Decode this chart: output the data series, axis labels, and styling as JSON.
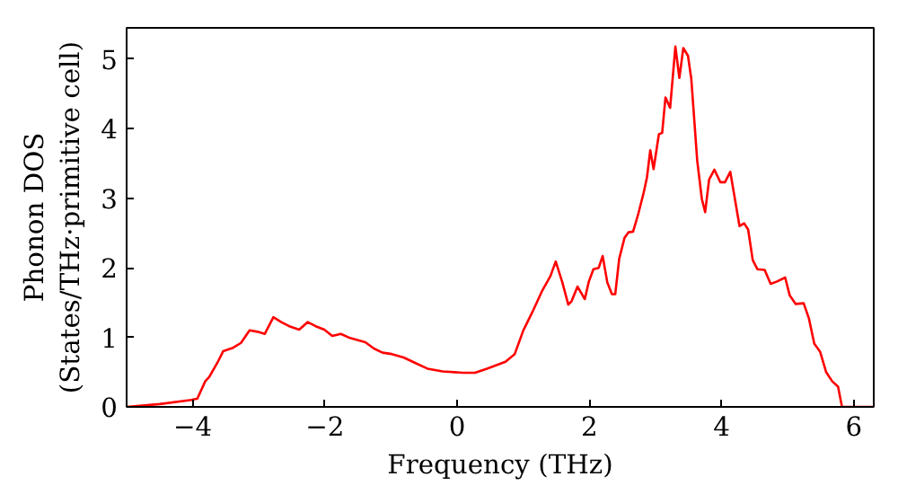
{
  "chart_data": {
    "type": "line",
    "xlabel": "Frequency (THz)",
    "ylabel": "Phonon DOS\n(States/THz·primitive cell)",
    "xlim": [
      -5,
      6.3
    ],
    "ylim": [
      0,
      5.45
    ],
    "xticks": [
      {
        "value": -4,
        "label": "−4"
      },
      {
        "value": -2,
        "label": "−2"
      },
      0,
      2,
      4,
      6
    ],
    "yticks": [
      0,
      1,
      2,
      3,
      4,
      5
    ],
    "grid": false,
    "marker": "none",
    "line_style": "solid",
    "series": [
      {
        "color": "#ff0000",
        "x": [
          -5,
          -4.5,
          -4.02,
          -3.93,
          -3.81,
          -3.75,
          -3.63,
          -3.54,
          -3.39,
          -3.27,
          -3.14,
          -3.02,
          -2.91,
          -2.78,
          -2.66,
          -2.54,
          -2.39,
          -2.26,
          -2.14,
          -2.01,
          -1.89,
          -1.76,
          -1.62,
          -1.39,
          -1.26,
          -1.13,
          -0.99,
          -0.81,
          -0.63,
          -0.45,
          -0.22,
          0.09,
          0.27,
          0.45,
          0.73,
          0.87,
          1.0,
          1.14,
          1.28,
          1.41,
          1.49,
          1.59,
          1.68,
          1.73,
          1.82,
          1.93,
          1.99,
          2.06,
          2.14,
          2.2,
          2.27,
          2.34,
          2.39,
          2.45,
          2.53,
          2.59,
          2.66,
          2.74,
          2.82,
          2.87,
          2.92,
          2.97,
          3.05,
          3.1,
          3.15,
          3.22,
          3.3,
          3.36,
          3.42,
          3.49,
          3.54,
          3.58,
          3.63,
          3.7,
          3.75,
          3.81,
          3.89,
          3.98,
          4.05,
          4.13,
          4.2,
          4.27,
          4.34,
          4.4,
          4.47,
          4.54,
          4.65,
          4.74,
          4.83,
          4.96,
          5.03,
          5.12,
          5.24,
          5.32,
          5.4,
          5.49,
          5.58,
          5.67,
          5.76,
          5.82,
          6.3
        ],
        "values": [
          0,
          0.04,
          0.1,
          0.12,
          0.37,
          0.43,
          0.63,
          0.8,
          0.85,
          0.92,
          1.1,
          1.08,
          1.05,
          1.29,
          1.22,
          1.16,
          1.11,
          1.22,
          1.16,
          1.11,
          1.02,
          1.05,
          0.99,
          0.93,
          0.84,
          0.78,
          0.76,
          0.71,
          0.63,
          0.55,
          0.51,
          0.49,
          0.49,
          0.55,
          0.65,
          0.76,
          1.1,
          1.37,
          1.66,
          1.88,
          2.09,
          1.79,
          1.47,
          1.52,
          1.73,
          1.55,
          1.8,
          1.98,
          2.0,
          2.17,
          1.79,
          1.62,
          1.62,
          2.13,
          2.43,
          2.51,
          2.52,
          2.78,
          3.08,
          3.3,
          3.69,
          3.42,
          3.92,
          3.94,
          4.45,
          4.3,
          5.18,
          4.73,
          5.16,
          5.05,
          4.72,
          4.2,
          3.54,
          2.99,
          2.8,
          3.27,
          3.41,
          3.23,
          3.23,
          3.38,
          2.99,
          2.6,
          2.64,
          2.55,
          2.11,
          1.98,
          1.97,
          1.77,
          1.8,
          1.86,
          1.6,
          1.48,
          1.49,
          1.27,
          0.91,
          0.79,
          0.5,
          0.37,
          0.29,
          0,
          0
        ]
      }
    ]
  }
}
